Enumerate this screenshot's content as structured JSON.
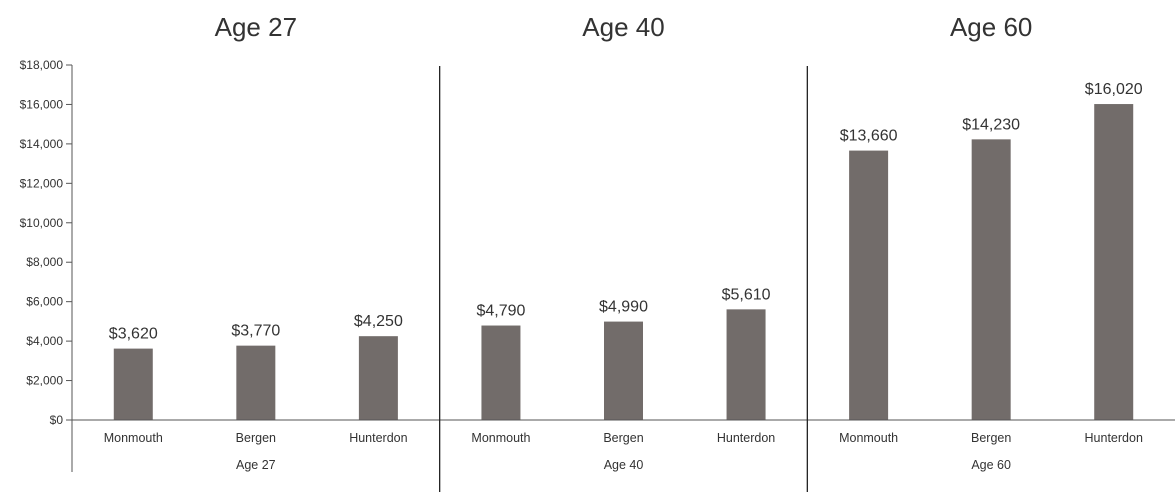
{
  "chart_data": {
    "type": "bar",
    "ylim": [
      0,
      18000
    ],
    "y_ticks": [
      {
        "value": 0,
        "label": "$0"
      },
      {
        "value": 2000,
        "label": "$2,000"
      },
      {
        "value": 4000,
        "label": "$4,000"
      },
      {
        "value": 6000,
        "label": "$6,000"
      },
      {
        "value": 8000,
        "label": "$8,000"
      },
      {
        "value": 10000,
        "label": "$10,000"
      },
      {
        "value": 12000,
        "label": "$12,000"
      },
      {
        "value": 14000,
        "label": "$14,000"
      },
      {
        "value": 16000,
        "label": "$16,000"
      },
      {
        "value": 18000,
        "label": "$18,000"
      }
    ],
    "bar_color": "#726c6a",
    "grid": false,
    "groups": [
      {
        "title": "Age 27",
        "group_label": "Age 27",
        "categories": [
          "Monmouth",
          "Bergen",
          "Hunterdon"
        ],
        "values": [
          3620,
          3770,
          4250
        ],
        "data_labels": [
          "$3,620",
          "$3,770",
          "$4,250"
        ]
      },
      {
        "title": "Age 40",
        "group_label": "Age 40",
        "categories": [
          "Monmouth",
          "Bergen",
          "Hunterdon"
        ],
        "values": [
          4790,
          4990,
          5610
        ],
        "data_labels": [
          "$4,790",
          "$4,990",
          "$5,610"
        ]
      },
      {
        "title": "Age 60",
        "group_label": "Age 60",
        "categories": [
          "Monmouth",
          "Bergen",
          "Hunterdon"
        ],
        "values": [
          13660,
          14230,
          16020
        ],
        "data_labels": [
          "$13,660",
          "$14,230",
          "$16,020"
        ]
      }
    ]
  }
}
